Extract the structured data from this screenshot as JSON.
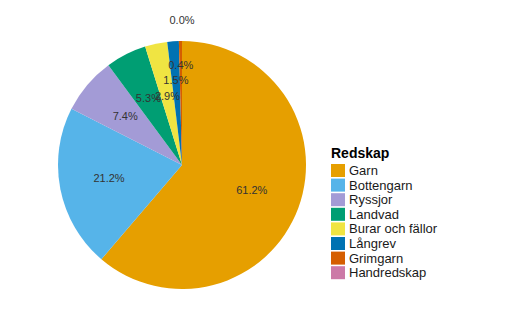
{
  "chart_data": {
    "type": "pie",
    "legend_title": "Redskap",
    "categories": [
      "Garn",
      "Bottengarn",
      "Ryssjor",
      "Landvad",
      "Burar och fällor",
      "Långrev",
      "Grimgarn",
      "Handredskap"
    ],
    "values": [
      61.2,
      21.2,
      7.4,
      5.3,
      2.9,
      1.5,
      0.4,
      0.0
    ],
    "value_labels": [
      "61.2%",
      "21.2%",
      "7.4%",
      "5.3%",
      "2.9%",
      "1.5%",
      "0.4%",
      "0.0%"
    ],
    "colors": [
      "#E69F00",
      "#56B4E9",
      "#A39BD6",
      "#009E73",
      "#F0E442",
      "#0072B2",
      "#D55E00",
      "#CC79A7"
    ],
    "data_labels": true,
    "legend": "right"
  }
}
